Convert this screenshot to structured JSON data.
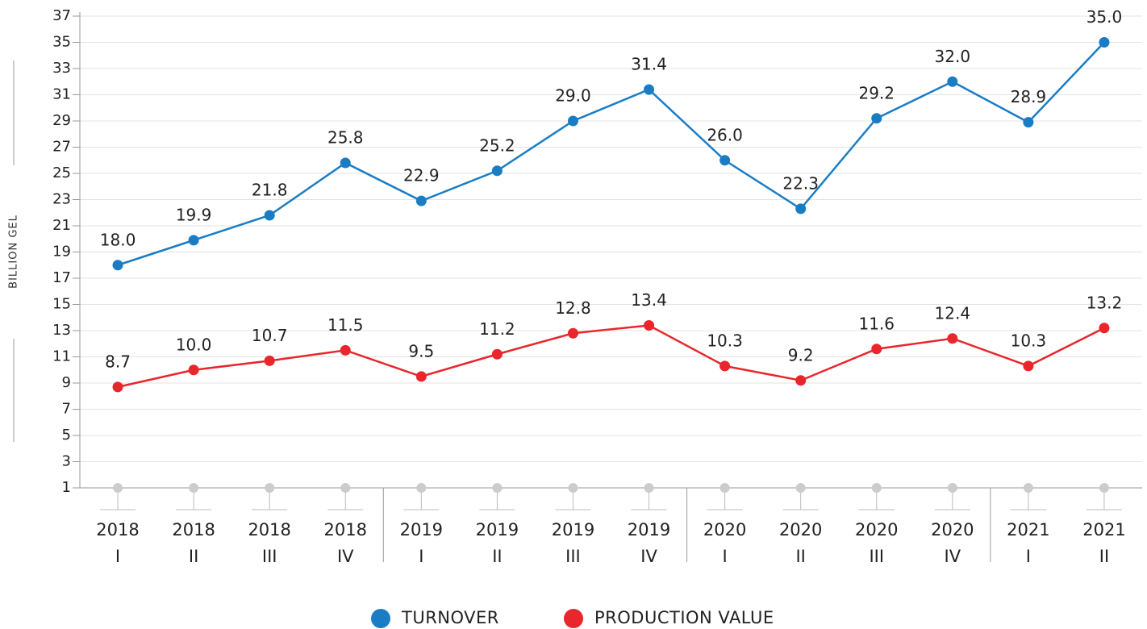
{
  "chart_data": {
    "type": "line",
    "y_label": "BILLION GEL",
    "categories": [
      [
        "2018",
        "I"
      ],
      [
        "2018",
        "II"
      ],
      [
        "2018",
        "III"
      ],
      [
        "2018",
        "IV"
      ],
      [
        "2019",
        "I"
      ],
      [
        "2019",
        "II"
      ],
      [
        "2019",
        "III"
      ],
      [
        "2019",
        "IV"
      ],
      [
        "2020",
        "I"
      ],
      [
        "2020",
        "II"
      ],
      [
        "2020",
        "III"
      ],
      [
        "2020",
        "IV"
      ],
      [
        "2021",
        "I"
      ],
      [
        "2021",
        "II"
      ]
    ],
    "series": [
      {
        "name": "TURNOVER",
        "color": "#1a7dc4",
        "values": [
          18.0,
          19.9,
          21.8,
          25.8,
          22.9,
          25.2,
          29.0,
          31.4,
          26.0,
          22.3,
          29.2,
          32.0,
          28.9,
          35.0
        ],
        "value_labels": [
          "18.0",
          "19.9",
          "21.8",
          "25.8",
          "22.9",
          "25.2",
          "29.0",
          "31.4",
          "26.0",
          "22.3",
          "29.2",
          "32.0",
          "28.9",
          "35.0"
        ]
      },
      {
        "name": "PRODUCTION VALUE",
        "color": "#e8262c",
        "values": [
          8.7,
          10.0,
          10.7,
          11.5,
          9.5,
          11.2,
          12.8,
          13.4,
          10.3,
          9.2,
          11.6,
          12.4,
          10.3,
          13.2
        ],
        "value_labels": [
          "8.7",
          "10.0",
          "10.7",
          "11.5",
          "9.5",
          "11.2",
          "12.8",
          "13.4",
          "10.3",
          "9.2",
          "11.6",
          "12.4",
          "10.3",
          "13.2"
        ]
      }
    ],
    "ylim": [
      1,
      37
    ],
    "yticks": [
      1,
      3,
      5,
      7,
      9,
      11,
      13,
      15,
      17,
      19,
      21,
      23,
      25,
      27,
      29,
      31,
      33,
      35,
      37
    ],
    "grid": true,
    "legend": "bottom"
  }
}
